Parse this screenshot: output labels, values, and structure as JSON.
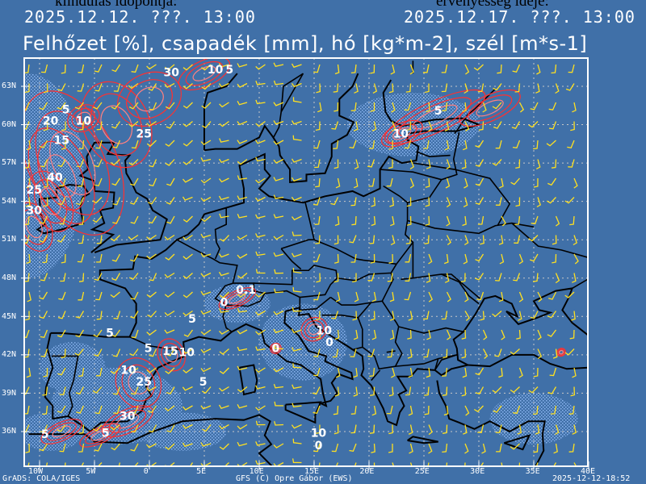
{
  "header": {
    "init_label": "kiindulás időpontja:",
    "init_time": "2025.12.12. ???. 13:00",
    "valid_label": "érvényesség ideje:",
    "valid_time": "2025.12.17. ???. 13:00",
    "title": "Felhőzet [%], csapadék [mm], hó [kg*m-2], szél [m*s-1]"
  },
  "map": {
    "lat_labels": [
      "63N",
      "60N",
      "57N",
      "54N",
      "51N",
      "48N",
      "45N",
      "42N",
      "39N",
      "36N"
    ],
    "lon_labels": [
      "10W",
      "5W",
      "0",
      "5E",
      "10E",
      "15E",
      "20E",
      "25E",
      "30E",
      "35E",
      "40E"
    ],
    "contour_labels": [
      {
        "text": "30",
        "lon": 2,
        "lat": 63.8
      },
      {
        "text": "10",
        "lon": 6,
        "lat": 64
      },
      {
        "text": "5",
        "lon": 7.3,
        "lat": 64
      },
      {
        "text": "5",
        "lon": -7.6,
        "lat": 60.9
      },
      {
        "text": "20",
        "lon": -9,
        "lat": 60
      },
      {
        "text": "10",
        "lon": -6,
        "lat": 60
      },
      {
        "text": "15",
        "lon": -8,
        "lat": 58.5
      },
      {
        "text": "25",
        "lon": -0.5,
        "lat": 59
      },
      {
        "text": "40",
        "lon": -8.6,
        "lat": 55.6
      },
      {
        "text": "25",
        "lon": -10.5,
        "lat": 54.6
      },
      {
        "text": "30",
        "lon": -10.5,
        "lat": 53
      },
      {
        "text": "5",
        "lon": 26.3,
        "lat": 60.8
      },
      {
        "text": "10",
        "lon": 22.9,
        "lat": 59
      },
      {
        "text": "0.1",
        "lon": 8.8,
        "lat": 46.8
      },
      {
        "text": "0",
        "lon": 6.8,
        "lat": 45.8
      },
      {
        "text": "5",
        "lon": 3.9,
        "lat": 44.5
      },
      {
        "text": "5",
        "lon": -3.6,
        "lat": 43.4
      },
      {
        "text": "10",
        "lon": 15.9,
        "lat": 43.6
      },
      {
        "text": "0",
        "lon": 16.4,
        "lat": 42.7
      },
      {
        "text": "0",
        "lon": 11.5,
        "lat": 42.2
      },
      {
        "text": "5",
        "lon": -0.1,
        "lat": 42.2
      },
      {
        "text": "15",
        "lon": 1.9,
        "lat": 42
      },
      {
        "text": "10",
        "lon": 3.4,
        "lat": 41.9
      },
      {
        "text": "10",
        "lon": -1.9,
        "lat": 40.5
      },
      {
        "text": "25",
        "lon": -0.5,
        "lat": 39.6
      },
      {
        "text": "5",
        "lon": 4.9,
        "lat": 39.6
      },
      {
        "text": "30",
        "lon": -2,
        "lat": 36.9
      },
      {
        "text": "5",
        "lon": -4,
        "lat": 35.6
      },
      {
        "text": "5",
        "lon": -9.5,
        "lat": 35.5
      },
      {
        "text": "10",
        "lon": 15.4,
        "lat": 35.6
      },
      {
        "text": "0",
        "lon": 15.4,
        "lat": 34.6
      }
    ]
  },
  "footer": {
    "left": "GrADS: COLA/IGES",
    "center": "GFS (C) Opre Gábor (EWS)",
    "right": "2025-12-12-18:52"
  },
  "colors": {
    "background": "#4070a8",
    "wind": "#ffe020",
    "contour": "#ff3030",
    "cloud": "#8ab4f0",
    "border": "#000000"
  }
}
